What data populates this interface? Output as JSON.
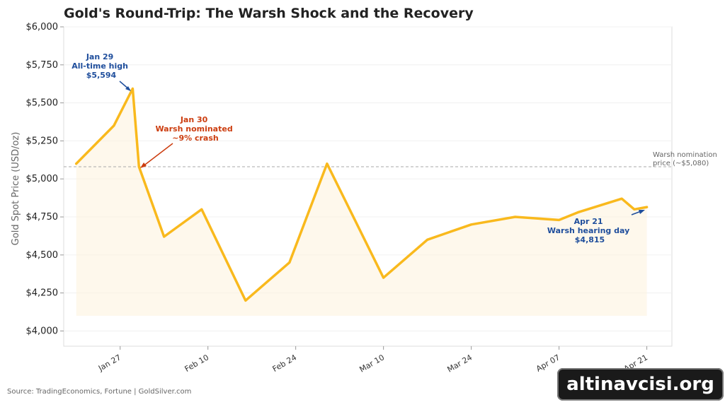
{
  "chart_data": {
    "type": "line",
    "title": "Gold's Round-Trip: The Warsh Shock and the Recovery",
    "xlabel": "",
    "ylabel": "Gold Spot Price (USD/oz)",
    "ylim": [
      3900,
      6000
    ],
    "y_ticks": [
      4000,
      4250,
      4500,
      4750,
      5000,
      5250,
      5500,
      5750,
      6000
    ],
    "y_tick_labels": [
      "$4,000",
      "$4,250",
      "$4,500",
      "$4,750",
      "$5,000",
      "$5,250",
      "$5,500",
      "$5,750",
      "$6,000"
    ],
    "x_ticks": [
      "2026-01-27",
      "2026-02-10",
      "2026-02-24",
      "2026-03-10",
      "2026-03-24",
      "2026-04-07",
      "2026-04-21"
    ],
    "x_tick_labels": [
      "Jan 27",
      "Feb 10",
      "Feb 24",
      "Mar 10",
      "Mar 24",
      "Apr 07",
      "Apr 21"
    ],
    "x_range": [
      "2026-01-18",
      "2026-04-25"
    ],
    "fill_floor": 4100,
    "grid": true,
    "series": [
      {
        "color": "#f9b91d",
        "points": [
          {
            "x": "2026-01-20",
            "y": 5100
          },
          {
            "x": "2026-01-26",
            "y": 5350
          },
          {
            "x": "2026-01-29",
            "y": 5594
          },
          {
            "x": "2026-01-30",
            "y": 5080
          },
          {
            "x": "2026-02-03",
            "y": 4620
          },
          {
            "x": "2026-02-09",
            "y": 4800
          },
          {
            "x": "2026-02-16",
            "y": 4200
          },
          {
            "x": "2026-02-23",
            "y": 4450
          },
          {
            "x": "2026-03-01",
            "y": 5100
          },
          {
            "x": "2026-03-10",
            "y": 4350
          },
          {
            "x": "2026-03-17",
            "y": 4600
          },
          {
            "x": "2026-03-24",
            "y": 4700
          },
          {
            "x": "2026-03-31",
            "y": 4750
          },
          {
            "x": "2026-04-07",
            "y": 4730
          },
          {
            "x": "2026-04-10",
            "y": 4780
          },
          {
            "x": "2026-04-17",
            "y": 4870
          },
          {
            "x": "2026-04-19",
            "y": 4800
          },
          {
            "x": "2026-04-21",
            "y": 4815
          }
        ]
      }
    ],
    "reference_line": {
      "y": 5080,
      "label_lines": [
        "Warsh nomination",
        "price (~$5,080)"
      ],
      "color": "#aaaaaa"
    },
    "annotations": [
      {
        "lines": [
          "Jan 29",
          "All-time high",
          "$5,594"
        ],
        "x": "2026-01-29",
        "y": 5594,
        "color": "#1f4e9c"
      },
      {
        "lines": [
          "Jan 30",
          "Warsh nominated",
          "~9% crash"
        ],
        "x": "2026-01-30",
        "y": 5080,
        "color": "#cc3d0f"
      },
      {
        "lines": [
          "Apr 21",
          "Warsh hearing day",
          "$4,815"
        ],
        "x": "2026-04-21",
        "y": 4815,
        "color": "#1f4e9c"
      }
    ],
    "source": "Source: TradingEconomics, Fortune | GoldSilver.com"
  },
  "watermark": "altinavcisi.org"
}
